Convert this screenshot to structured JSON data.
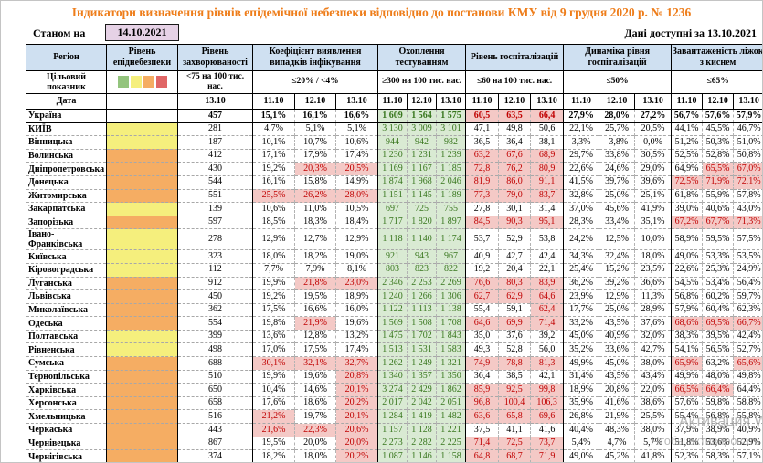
{
  "title": "Індикатори визначення рівнів епідемічної небезпеки відповідно до постанови КМУ від 9 грудня 2020 р. № 1236",
  "meta": {
    "as_of_label": "Станом на",
    "as_of_date": "14.10.2021",
    "available_label": "Дані доступні за",
    "available_date": "13.10.2021"
  },
  "colors": {
    "title_text": "#ee7d1a",
    "header_bg": "#cfe0f1",
    "as_of_box_bg": "#e6d2e6",
    "level_yellow": "#f5ef7d",
    "level_orange": "#f5ad63",
    "good_bg": "#d9ead3",
    "good_text": "#38761d",
    "alert_bg": "#f4c9c6",
    "alert_text": "#c00000",
    "legend": [
      "#93c47d",
      "#f5ef7d",
      "#f5ad63",
      "#e06666"
    ]
  },
  "columns": {
    "region": "Регіон",
    "target_row_label": "Цільовий показник",
    "date_row_label": "Дата",
    "groups": [
      {
        "id": "level",
        "label": "Рівень епіднебезпеки",
        "target": "",
        "dates": []
      },
      {
        "id": "incidence",
        "label": "Рівень захворюваності",
        "target": "<75 на 100 тис. нас.",
        "dates": [
          "13.10"
        ]
      },
      {
        "id": "detection",
        "label": "Коефіцієнт виявлення випадків інфікування",
        "target": "≤20% / <4%",
        "dates": [
          "11.10",
          "12.10",
          "13.10"
        ]
      },
      {
        "id": "testing",
        "label": "Охоплення тестуванням",
        "target": "≥300 на 100 тис. нас.",
        "dates": [
          "11.10",
          "12.10",
          "13.10"
        ]
      },
      {
        "id": "hosp",
        "label": "Рівень госпіталізацій",
        "target": "≤60 на 100 тис. нас.",
        "dates": [
          "11.10",
          "12.10",
          "13.10"
        ]
      },
      {
        "id": "dyn",
        "label": "Динаміка рівня госпіталізацій",
        "target": "≤50%",
        "dates": [
          "11.10",
          "12.10",
          "13.10"
        ]
      },
      {
        "id": "beds",
        "label": "Завантаженість ліжок з киснем",
        "target": "≤65%",
        "dates": [
          "11.10",
          "12.10",
          "13.10"
        ]
      }
    ]
  },
  "rows": [
    {
      "region": "Україна",
      "bold": true,
      "level": "none",
      "inc": "457",
      "det": [
        "15,1%",
        "16,1%",
        "16,6%"
      ],
      "detf": [
        0,
        0,
        0
      ],
      "test": [
        "1 609",
        "1 564",
        "1 575"
      ],
      "hosp": [
        "60,5",
        "63,5",
        "66,4"
      ],
      "hospf": [
        1,
        1,
        1
      ],
      "dyn": [
        "27,9%",
        "28,0%",
        "27,2%"
      ],
      "beds": [
        "56,7%",
        "57,6%",
        "57,9%"
      ],
      "bedsf": [
        0,
        0,
        0
      ]
    },
    {
      "region": "КИЇВ",
      "level": "yellow",
      "inc": "281",
      "det": [
        "4,7%",
        "5,1%",
        "5,1%"
      ],
      "detf": [
        0,
        0,
        0
      ],
      "test": [
        "3 130",
        "3 009",
        "3 101"
      ],
      "hosp": [
        "47,1",
        "49,8",
        "50,6"
      ],
      "hospf": [
        0,
        0,
        0
      ],
      "dyn": [
        "22,1%",
        "25,7%",
        "20,5%"
      ],
      "beds": [
        "44,1%",
        "45,5%",
        "46,7%"
      ],
      "bedsf": [
        0,
        0,
        0
      ]
    },
    {
      "region": "Вінницька",
      "level": "yellow",
      "inc": "187",
      "det": [
        "10,1%",
        "10,7%",
        "10,6%"
      ],
      "detf": [
        0,
        0,
        0
      ],
      "test": [
        "944",
        "942",
        "982"
      ],
      "hosp": [
        "36,5",
        "36,4",
        "38,1"
      ],
      "hospf": [
        0,
        0,
        0
      ],
      "dyn": [
        "3,3%",
        "-3,8%",
        "0,0%"
      ],
      "beds": [
        "51,2%",
        "50,3%",
        "51,0%"
      ],
      "bedsf": [
        0,
        0,
        0
      ]
    },
    {
      "region": "Волинська",
      "level": "orange",
      "inc": "412",
      "det": [
        "17,1%",
        "17,9%",
        "17,4%"
      ],
      "detf": [
        0,
        0,
        0
      ],
      "test": [
        "1 230",
        "1 231",
        "1 239"
      ],
      "hosp": [
        "63,2",
        "67,6",
        "68,9"
      ],
      "hospf": [
        1,
        1,
        1
      ],
      "dyn": [
        "29,7%",
        "33,8%",
        "30,5%"
      ],
      "beds": [
        "52,5%",
        "52,8%",
        "50,8%"
      ],
      "bedsf": [
        0,
        0,
        0
      ]
    },
    {
      "region": "Дніпропетровська",
      "level": "orange",
      "inc": "430",
      "det": [
        "19,2%",
        "20,3%",
        "20,5%"
      ],
      "detf": [
        0,
        1,
        1
      ],
      "test": [
        "1 169",
        "1 167",
        "1 185"
      ],
      "hosp": [
        "72,8",
        "76,2",
        "80,9"
      ],
      "hospf": [
        1,
        1,
        1
      ],
      "dyn": [
        "22,6%",
        "24,6%",
        "29,0%"
      ],
      "beds": [
        "64,9%",
        "65,5%",
        "67,0%"
      ],
      "bedsf": [
        0,
        1,
        1
      ]
    },
    {
      "region": "Донецька",
      "level": "orange",
      "inc": "544",
      "det": [
        "16,1%",
        "15,8%",
        "14,9%"
      ],
      "detf": [
        0,
        0,
        0
      ],
      "test": [
        "1 874",
        "1 968",
        "2 046"
      ],
      "hosp": [
        "81,9",
        "86,0",
        "91,1"
      ],
      "hospf": [
        1,
        1,
        1
      ],
      "dyn": [
        "41,5%",
        "39,7%",
        "39,6%"
      ],
      "beds": [
        "72,5%",
        "71,9%",
        "72,1%"
      ],
      "bedsf": [
        1,
        1,
        1
      ]
    },
    {
      "region": "Житомирська",
      "level": "orange",
      "inc": "551",
      "det": [
        "25,5%",
        "26,2%",
        "28,0%"
      ],
      "detf": [
        1,
        1,
        1
      ],
      "test": [
        "1 151",
        "1 145",
        "1 189"
      ],
      "hosp": [
        "77,3",
        "79,0",
        "83,7"
      ],
      "hospf": [
        1,
        1,
        1
      ],
      "dyn": [
        "32,8%",
        "25,0%",
        "25,1%"
      ],
      "beds": [
        "61,8%",
        "55,9%",
        "57,8%"
      ],
      "bedsf": [
        0,
        0,
        0
      ]
    },
    {
      "region": "Закарпатська",
      "level": "yellow",
      "inc": "139",
      "det": [
        "10,6%",
        "11,0%",
        "10,5%"
      ],
      "detf": [
        0,
        0,
        0
      ],
      "test": [
        "697",
        "725",
        "755"
      ],
      "hosp": [
        "27,8",
        "30,1",
        "31,4"
      ],
      "hospf": [
        0,
        0,
        0
      ],
      "dyn": [
        "37,0%",
        "45,6%",
        "41,9%"
      ],
      "beds": [
        "39,0%",
        "40,6%",
        "43,0%"
      ],
      "bedsf": [
        0,
        0,
        0
      ]
    },
    {
      "region": "Запорізька",
      "level": "orange",
      "inc": "597",
      "det": [
        "18,5%",
        "18,3%",
        "18,4%"
      ],
      "detf": [
        0,
        0,
        0
      ],
      "test": [
        "1 717",
        "1 820",
        "1 897"
      ],
      "hosp": [
        "84,5",
        "90,3",
        "95,1"
      ],
      "hospf": [
        1,
        1,
        1
      ],
      "dyn": [
        "28,3%",
        "33,4%",
        "35,1%"
      ],
      "beds": [
        "67,2%",
        "67,7%",
        "71,3%"
      ],
      "bedsf": [
        1,
        1,
        1
      ]
    },
    {
      "region": "Івано-Франківська",
      "level": "yellow",
      "inc": "278",
      "det": [
        "12,9%",
        "12,7%",
        "12,9%"
      ],
      "detf": [
        0,
        0,
        0
      ],
      "test": [
        "1 118",
        "1 140",
        "1 174"
      ],
      "hosp": [
        "53,7",
        "52,9",
        "53,8"
      ],
      "hospf": [
        0,
        0,
        0
      ],
      "dyn": [
        "24,2%",
        "12,5%",
        "10,0%"
      ],
      "beds": [
        "58,9%",
        "59,5%",
        "57,5%"
      ],
      "bedsf": [
        0,
        0,
        0
      ]
    },
    {
      "region": "Київська",
      "level": "yellow",
      "inc": "323",
      "det": [
        "18,0%",
        "18,2%",
        "19,0%"
      ],
      "detf": [
        0,
        0,
        0
      ],
      "test": [
        "921",
        "943",
        "967"
      ],
      "hosp": [
        "40,9",
        "42,7",
        "42,4"
      ],
      "hospf": [
        0,
        0,
        0
      ],
      "dyn": [
        "34,3%",
        "32,4%",
        "18,0%"
      ],
      "beds": [
        "49,0%",
        "53,3%",
        "53,5%"
      ],
      "bedsf": [
        0,
        0,
        0
      ]
    },
    {
      "region": "Кіровоградська",
      "level": "yellow",
      "inc": "112",
      "det": [
        "7,7%",
        "7,9%",
        "8,1%"
      ],
      "detf": [
        0,
        0,
        0
      ],
      "test": [
        "803",
        "823",
        "822"
      ],
      "hosp": [
        "19,2",
        "20,4",
        "22,1"
      ],
      "hospf": [
        0,
        0,
        0
      ],
      "dyn": [
        "25,4%",
        "15,2%",
        "23,5%"
      ],
      "beds": [
        "22,6%",
        "25,3%",
        "24,9%"
      ],
      "bedsf": [
        0,
        0,
        0
      ]
    },
    {
      "region": "Луганська",
      "level": "orange",
      "inc": "912",
      "det": [
        "19,9%",
        "21,8%",
        "23,0%"
      ],
      "detf": [
        0,
        1,
        1
      ],
      "test": [
        "2 346",
        "2 253",
        "2 269"
      ],
      "hosp": [
        "76,6",
        "80,3",
        "83,9"
      ],
      "hospf": [
        1,
        1,
        1
      ],
      "dyn": [
        "36,2%",
        "39,2%",
        "36,6%"
      ],
      "beds": [
        "54,5%",
        "53,4%",
        "56,4%"
      ],
      "bedsf": [
        0,
        0,
        0
      ]
    },
    {
      "region": "Львівська",
      "level": "orange",
      "inc": "450",
      "det": [
        "19,2%",
        "19,5%",
        "18,9%"
      ],
      "detf": [
        0,
        0,
        0
      ],
      "test": [
        "1 240",
        "1 266",
        "1 306"
      ],
      "hosp": [
        "62,7",
        "62,9",
        "64,6"
      ],
      "hospf": [
        1,
        1,
        1
      ],
      "dyn": [
        "23,9%",
        "12,9%",
        "11,3%"
      ],
      "beds": [
        "56,8%",
        "60,2%",
        "59,7%"
      ],
      "bedsf": [
        0,
        0,
        0
      ]
    },
    {
      "region": "Миколаївська",
      "level": "orange",
      "inc": "362",
      "det": [
        "17,5%",
        "16,6%",
        "16,0%"
      ],
      "detf": [
        0,
        0,
        0
      ],
      "test": [
        "1 122",
        "1 113",
        "1 138"
      ],
      "hosp": [
        "55,4",
        "59,1",
        "62,4"
      ],
      "hospf": [
        0,
        0,
        1
      ],
      "dyn": [
        "17,7%",
        "25,0%",
        "28,9%"
      ],
      "beds": [
        "57,9%",
        "60,4%",
        "62,3%"
      ],
      "bedsf": [
        0,
        0,
        0
      ]
    },
    {
      "region": "Одеська",
      "level": "orange",
      "inc": "554",
      "det": [
        "19,8%",
        "21,9%",
        "19,6%"
      ],
      "detf": [
        0,
        1,
        0
      ],
      "test": [
        "1 569",
        "1 508",
        "1 708"
      ],
      "hosp": [
        "64,6",
        "69,9",
        "71,4"
      ],
      "hospf": [
        1,
        1,
        1
      ],
      "dyn": [
        "33,2%",
        "43,5%",
        "37,6%"
      ],
      "beds": [
        "68,6%",
        "69,5%",
        "66,7%"
      ],
      "bedsf": [
        1,
        1,
        1
      ]
    },
    {
      "region": "Полтавська",
      "level": "yellow",
      "inc": "399",
      "det": [
        "13,6%",
        "12,8%",
        "13,2%"
      ],
      "detf": [
        0,
        0,
        0
      ],
      "test": [
        "1 475",
        "1 702",
        "1 843"
      ],
      "hosp": [
        "35,0",
        "37,6",
        "39,2"
      ],
      "hospf": [
        0,
        0,
        0
      ],
      "dyn": [
        "45,0%",
        "40,9%",
        "32,0%"
      ],
      "beds": [
        "38,3%",
        "39,5%",
        "42,4%"
      ],
      "bedsf": [
        0,
        0,
        0
      ]
    },
    {
      "region": "Рівненська",
      "level": "yellow",
      "inc": "498",
      "det": [
        "17,0%",
        "17,5%",
        "17,4%"
      ],
      "detf": [
        0,
        0,
        0
      ],
      "test": [
        "1 513",
        "1 531",
        "1 583"
      ],
      "hosp": [
        "49,3",
        "52,8",
        "56,0"
      ],
      "hospf": [
        0,
        0,
        0
      ],
      "dyn": [
        "35,2%",
        "33,6%",
        "42,7%"
      ],
      "beds": [
        "54,1%",
        "56,5%",
        "52,7%"
      ],
      "bedsf": [
        0,
        0,
        0
      ]
    },
    {
      "region": "Сумська",
      "level": "orange",
      "inc": "688",
      "det": [
        "30,1%",
        "32,1%",
        "32,7%"
      ],
      "detf": [
        1,
        1,
        1
      ],
      "test": [
        "1 262",
        "1 249",
        "1 321"
      ],
      "hosp": [
        "74,9",
        "78,8",
        "81,3"
      ],
      "hospf": [
        1,
        1,
        1
      ],
      "dyn": [
        "49,9%",
        "45,0%",
        "38,0%"
      ],
      "beds": [
        "65,9%",
        "63,2%",
        "65,6%"
      ],
      "bedsf": [
        1,
        0,
        1
      ]
    },
    {
      "region": "Тернопільська",
      "level": "orange",
      "inc": "510",
      "det": [
        "19,9%",
        "19,6%",
        "20,8%"
      ],
      "detf": [
        0,
        0,
        1
      ],
      "test": [
        "1 340",
        "1 357",
        "1 350"
      ],
      "hosp": [
        "36,4",
        "38,5",
        "42,1"
      ],
      "hospf": [
        0,
        0,
        0
      ],
      "dyn": [
        "31,4%",
        "43,5%",
        "43,4%"
      ],
      "beds": [
        "49,9%",
        "48,0%",
        "49,8%"
      ],
      "bedsf": [
        0,
        0,
        0
      ]
    },
    {
      "region": "Харківська",
      "level": "orange",
      "inc": "650",
      "det": [
        "10,4%",
        "14,6%",
        "20,1%"
      ],
      "detf": [
        0,
        0,
        1
      ],
      "test": [
        "3 274",
        "2 429",
        "1 862"
      ],
      "hosp": [
        "85,9",
        "92,5",
        "99,8"
      ],
      "hospf": [
        1,
        1,
        1
      ],
      "dyn": [
        "18,9%",
        "20,8%",
        "22,0%"
      ],
      "beds": [
        "66,5%",
        "66,4%",
        "64,4%"
      ],
      "bedsf": [
        1,
        1,
        0
      ]
    },
    {
      "region": "Херсонська",
      "level": "orange",
      "inc": "658",
      "det": [
        "17,6%",
        "18,6%",
        "20,2%"
      ],
      "detf": [
        0,
        0,
        1
      ],
      "test": [
        "2 017",
        "2 042",
        "2 051"
      ],
      "hosp": [
        "96,8",
        "100,4",
        "106,3"
      ],
      "hospf": [
        1,
        1,
        1
      ],
      "dyn": [
        "35,9%",
        "41,6%",
        "38,6%"
      ],
      "beds": [
        "57,6%",
        "59,8%",
        "58,8%"
      ],
      "bedsf": [
        0,
        0,
        0
      ]
    },
    {
      "region": "Хмельницька",
      "level": "orange",
      "inc": "516",
      "det": [
        "21,2%",
        "19,7%",
        "20,1%"
      ],
      "detf": [
        1,
        0,
        1
      ],
      "test": [
        "1 284",
        "1 419",
        "1 482"
      ],
      "hosp": [
        "63,6",
        "65,8",
        "69,6"
      ],
      "hospf": [
        1,
        1,
        1
      ],
      "dyn": [
        "26,8%",
        "21,9%",
        "25,5%"
      ],
      "beds": [
        "55,4%",
        "56,8%",
        "55,8%"
      ],
      "bedsf": [
        0,
        0,
        0
      ]
    },
    {
      "region": "Черкаська",
      "level": "orange",
      "inc": "443",
      "det": [
        "21,6%",
        "22,3%",
        "20,6%"
      ],
      "detf": [
        1,
        1,
        1
      ],
      "test": [
        "1 157",
        "1 128",
        "1 221"
      ],
      "hosp": [
        "37,5",
        "41,1",
        "41,6"
      ],
      "hospf": [
        0,
        0,
        0
      ],
      "dyn": [
        "40,4%",
        "48,3%",
        "38,0%"
      ],
      "beds": [
        "37,9%",
        "38,9%",
        "40,9%"
      ],
      "bedsf": [
        0,
        0,
        0
      ]
    },
    {
      "region": "Чернівецька",
      "level": "orange",
      "inc": "867",
      "det": [
        "19,5%",
        "20,0%",
        "20,0%"
      ],
      "detf": [
        0,
        0,
        1
      ],
      "test": [
        "2 273",
        "2 282",
        "2 225"
      ],
      "hosp": [
        "71,4",
        "72,5",
        "73,7"
      ],
      "hospf": [
        1,
        1,
        1
      ],
      "dyn": [
        "5,4%",
        "4,7%",
        "5,7%"
      ],
      "beds": [
        "51,8%",
        "53,6%",
        "52,9%"
      ],
      "bedsf": [
        0,
        0,
        0
      ]
    },
    {
      "region": "Чернігівська",
      "level": "orange",
      "inc": "374",
      "det": [
        "18,2%",
        "18,0%",
        "20,2%"
      ],
      "detf": [
        0,
        0,
        1
      ],
      "test": [
        "1 087",
        "1 146",
        "1 158"
      ],
      "hosp": [
        "64,8",
        "68,7",
        "71,9"
      ],
      "hospf": [
        1,
        1,
        1
      ],
      "dyn": [
        "49,0%",
        "45,2%",
        "41,8%"
      ],
      "beds": [
        "52,3%",
        "58,3%",
        "57,1%"
      ],
      "bedsf": [
        0,
        0,
        0
      ]
    }
  ],
  "watermark": {
    "line1": "Активация Windows",
    "line2": "Чтобы активировать Windows"
  }
}
